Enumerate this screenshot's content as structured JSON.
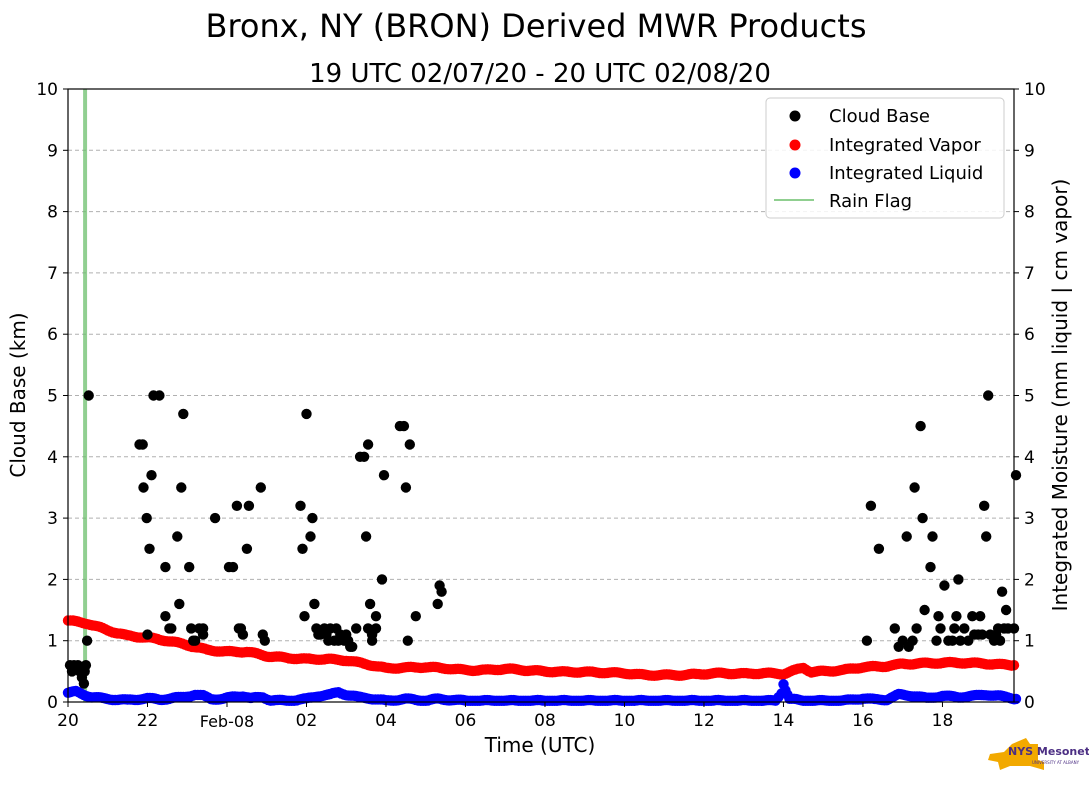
{
  "chart_data": {
    "type": "scatter",
    "title": "Bronx, NY (BRON) Derived MWR Products",
    "subtitle": "19 UTC 02/07/20 - 20 UTC 02/08/20",
    "xlabel": "Time (UTC)",
    "ylabel_left": "Cloud Base (km)",
    "ylabel_right": "Integrated Moisture (mm liquid | cm vapor)",
    "x_units": "hours since 20 UTC 02/07/20",
    "xlim": [
      0,
      23.8
    ],
    "ylim": [
      0,
      10
    ],
    "grid": true,
    "legend_position": "top-right",
    "x_ticks": [
      {
        "x": 0,
        "label": "20"
      },
      {
        "x": 2,
        "label": "22"
      },
      {
        "x": 4,
        "label": "Feb-08"
      },
      {
        "x": 6,
        "label": "02"
      },
      {
        "x": 8,
        "label": "04"
      },
      {
        "x": 10,
        "label": "06"
      },
      {
        "x": 12,
        "label": "08"
      },
      {
        "x": 14,
        "label": "10"
      },
      {
        "x": 16,
        "label": "12"
      },
      {
        "x": 18,
        "label": "14"
      },
      {
        "x": 20,
        "label": "16"
      },
      {
        "x": 22,
        "label": "18"
      }
    ],
    "y_ticks": [
      "0",
      "1",
      "2",
      "3",
      "4",
      "5",
      "6",
      "7",
      "8",
      "9",
      "10"
    ],
    "series": [
      {
        "name": "Cloud Base",
        "color": "#000000",
        "points": [
          [
            0.05,
            0.6
          ],
          [
            0.1,
            0.5
          ],
          [
            0.15,
            0.6
          ],
          [
            0.2,
            0.55
          ],
          [
            0.25,
            0.6
          ],
          [
            0.3,
            0.5
          ],
          [
            0.35,
            0.4
          ],
          [
            0.4,
            0.3
          ],
          [
            0.42,
            0.5
          ],
          [
            0.45,
            0.6
          ],
          [
            0.48,
            1.0
          ],
          [
            0.52,
            5.0
          ],
          [
            1.8,
            4.2
          ],
          [
            1.88,
            4.2
          ],
          [
            1.9,
            3.5
          ],
          [
            1.98,
            3.0
          ],
          [
            2.0,
            1.1
          ],
          [
            2.05,
            2.5
          ],
          [
            2.1,
            3.7
          ],
          [
            2.15,
            5.0
          ],
          [
            2.3,
            5.0
          ],
          [
            2.45,
            2.2
          ],
          [
            2.45,
            1.4
          ],
          [
            2.55,
            1.2
          ],
          [
            2.6,
            1.2
          ],
          [
            2.75,
            2.7
          ],
          [
            2.8,
            1.6
          ],
          [
            2.85,
            3.5
          ],
          [
            2.9,
            4.7
          ],
          [
            3.05,
            2.2
          ],
          [
            3.1,
            1.2
          ],
          [
            3.15,
            1.0
          ],
          [
            3.2,
            1.0
          ],
          [
            3.3,
            1.2
          ],
          [
            3.4,
            1.1
          ],
          [
            3.4,
            1.2
          ],
          [
            3.7,
            3.0
          ],
          [
            4.05,
            2.2
          ],
          [
            4.15,
            2.2
          ],
          [
            4.25,
            3.2
          ],
          [
            4.3,
            1.2
          ],
          [
            4.35,
            1.2
          ],
          [
            4.4,
            1.1
          ],
          [
            4.5,
            2.5
          ],
          [
            4.55,
            3.2
          ],
          [
            4.85,
            3.5
          ],
          [
            4.9,
            1.1
          ],
          [
            4.95,
            1.0
          ],
          [
            5.85,
            3.2
          ],
          [
            5.9,
            2.5
          ],
          [
            5.95,
            1.4
          ],
          [
            6.0,
            4.7
          ],
          [
            6.1,
            2.7
          ],
          [
            6.15,
            3.0
          ],
          [
            6.2,
            1.6
          ],
          [
            6.25,
            1.2
          ],
          [
            6.3,
            1.1
          ],
          [
            6.35,
            1.1
          ],
          [
            6.45,
            1.2
          ],
          [
            6.5,
            1.1
          ],
          [
            6.55,
            1.0
          ],
          [
            6.6,
            1.2
          ],
          [
            6.7,
            1.0
          ],
          [
            6.75,
            1.2
          ],
          [
            6.8,
            1.0
          ],
          [
            6.85,
            1.1
          ],
          [
            6.95,
            1.0
          ],
          [
            7.0,
            1.1
          ],
          [
            7.05,
            1.0
          ],
          [
            7.1,
            0.9
          ],
          [
            7.15,
            0.9
          ],
          [
            7.25,
            1.2
          ],
          [
            7.35,
            4.0
          ],
          [
            7.45,
            4.0
          ],
          [
            7.5,
            2.7
          ],
          [
            7.55,
            4.2
          ],
          [
            7.55,
            1.2
          ],
          [
            7.6,
            1.6
          ],
          [
            7.65,
            1.1
          ],
          [
            7.65,
            1.0
          ],
          [
            7.75,
            1.2
          ],
          [
            7.75,
            1.4
          ],
          [
            7.9,
            2.0
          ],
          [
            7.95,
            3.7
          ],
          [
            8.35,
            4.5
          ],
          [
            8.45,
            4.5
          ],
          [
            8.5,
            3.5
          ],
          [
            8.55,
            1.0
          ],
          [
            8.6,
            4.2
          ],
          [
            8.75,
            1.4
          ],
          [
            9.3,
            1.6
          ],
          [
            9.35,
            1.9
          ],
          [
            9.4,
            1.8
          ],
          [
            20.1,
            1.0
          ],
          [
            20.2,
            3.2
          ],
          [
            20.4,
            2.5
          ],
          [
            20.8,
            1.2
          ],
          [
            20.9,
            0.9
          ],
          [
            21.0,
            1.0
          ],
          [
            21.1,
            2.7
          ],
          [
            21.15,
            0.9
          ],
          [
            21.25,
            1.0
          ],
          [
            21.3,
            3.5
          ],
          [
            21.35,
            1.2
          ],
          [
            21.45,
            4.5
          ],
          [
            21.5,
            3.0
          ],
          [
            21.55,
            1.5
          ],
          [
            21.7,
            2.2
          ],
          [
            21.75,
            2.7
          ],
          [
            21.85,
            1.0
          ],
          [
            21.9,
            1.4
          ],
          [
            21.95,
            1.2
          ],
          [
            22.05,
            1.9
          ],
          [
            22.15,
            1.0
          ],
          [
            22.25,
            1.0
          ],
          [
            22.3,
            1.2
          ],
          [
            22.35,
            1.4
          ],
          [
            22.4,
            2.0
          ],
          [
            22.45,
            1.0
          ],
          [
            22.55,
            1.2
          ],
          [
            22.65,
            1.0
          ],
          [
            22.75,
            1.4
          ],
          [
            22.8,
            1.1
          ],
          [
            22.9,
            1.1
          ],
          [
            22.95,
            1.4
          ],
          [
            23.0,
            1.1
          ],
          [
            23.05,
            3.2
          ],
          [
            23.1,
            2.7
          ],
          [
            23.15,
            5.0
          ],
          [
            23.2,
            1.1
          ],
          [
            23.3,
            1.0
          ],
          [
            23.35,
            1.1
          ],
          [
            23.4,
            1.2
          ],
          [
            23.45,
            1.0
          ],
          [
            23.5,
            1.8
          ],
          [
            23.55,
            1.2
          ],
          [
            23.6,
            1.5
          ],
          [
            23.65,
            1.2
          ],
          [
            23.8,
            1.2
          ],
          [
            23.85,
            3.7
          ]
        ]
      },
      {
        "name": "Integrated Vapor",
        "color": "#ff0000",
        "points": [
          [
            0,
            1.33
          ],
          [
            0.5,
            1.28
          ],
          [
            1,
            1.17
          ],
          [
            1.5,
            1.08
          ],
          [
            2,
            1.05
          ],
          [
            2.5,
            1.0
          ],
          [
            3,
            0.93
          ],
          [
            3.5,
            0.85
          ],
          [
            4,
            0.82
          ],
          [
            4.5,
            0.82
          ],
          [
            5,
            0.75
          ],
          [
            5.5,
            0.72
          ],
          [
            6,
            0.7
          ],
          [
            6.5,
            0.7
          ],
          [
            7,
            0.68
          ],
          [
            7.5,
            0.62
          ],
          [
            8,
            0.55
          ],
          [
            8.5,
            0.56
          ],
          [
            9,
            0.57
          ],
          [
            9.5,
            0.55
          ],
          [
            10,
            0.52
          ],
          [
            10.5,
            0.52
          ],
          [
            11,
            0.54
          ],
          [
            11.5,
            0.52
          ],
          [
            12,
            0.5
          ],
          [
            12.5,
            0.49
          ],
          [
            13,
            0.49
          ],
          [
            13.5,
            0.48
          ],
          [
            14,
            0.47
          ],
          [
            14.5,
            0.44
          ],
          [
            15,
            0.44
          ],
          [
            15.5,
            0.44
          ],
          [
            16,
            0.46
          ],
          [
            16.5,
            0.47
          ],
          [
            17,
            0.46
          ],
          [
            17.5,
            0.47
          ],
          [
            18,
            0.46
          ],
          [
            18.3,
            0.52
          ],
          [
            18.5,
            0.56
          ],
          [
            18.7,
            0.49
          ],
          [
            19,
            0.5
          ],
          [
            19.5,
            0.52
          ],
          [
            20,
            0.57
          ],
          [
            20.5,
            0.58
          ],
          [
            21,
            0.62
          ],
          [
            21.5,
            0.63
          ],
          [
            22,
            0.64
          ],
          [
            22.5,
            0.64
          ],
          [
            23,
            0.63
          ],
          [
            23.5,
            0.61
          ],
          [
            23.8,
            0.6
          ]
        ]
      },
      {
        "name": "Integrated Liquid",
        "color": "#0000ff",
        "points": [
          [
            0,
            0.15
          ],
          [
            0.2,
            0.17
          ],
          [
            0.4,
            0.12
          ],
          [
            0.6,
            0.08
          ],
          [
            1,
            0.05
          ],
          [
            1.5,
            0.03
          ],
          [
            2,
            0.06
          ],
          [
            2.3,
            0.04
          ],
          [
            2.6,
            0.06
          ],
          [
            2.9,
            0.08
          ],
          [
            3.2,
            0.12
          ],
          [
            3.4,
            0.1
          ],
          [
            3.6,
            0.05
          ],
          [
            3.9,
            0.05
          ],
          [
            4.2,
            0.09
          ],
          [
            4.4,
            0.1
          ],
          [
            4.6,
            0.06
          ],
          [
            4.9,
            0.08
          ],
          [
            5.1,
            0.03
          ],
          [
            5.5,
            0.02
          ],
          [
            6,
            0.05
          ],
          [
            6.3,
            0.1
          ],
          [
            6.6,
            0.12
          ],
          [
            6.8,
            0.16
          ],
          [
            7,
            0.12
          ],
          [
            7.3,
            0.08
          ],
          [
            7.6,
            0.06
          ],
          [
            7.8,
            0.04
          ],
          [
            8,
            0.02
          ],
          [
            8.5,
            0.05
          ],
          [
            9,
            0.02
          ],
          [
            9.3,
            0.05
          ],
          [
            10,
            0.02
          ],
          [
            12,
            0.02
          ],
          [
            14,
            0.02
          ],
          [
            16,
            0.02
          ],
          [
            17.8,
            0.02
          ],
          [
            17.95,
            0.15
          ],
          [
            18.0,
            0.3
          ],
          [
            18.05,
            0.2
          ],
          [
            18.15,
            0.05
          ],
          [
            18.5,
            0.02
          ],
          [
            19.5,
            0.02
          ],
          [
            20,
            0.06
          ],
          [
            20.3,
            0.04
          ],
          [
            20.6,
            0.04
          ],
          [
            20.9,
            0.12
          ],
          [
            21.3,
            0.1
          ],
          [
            21.6,
            0.06
          ],
          [
            22,
            0.1
          ],
          [
            22.4,
            0.08
          ],
          [
            22.8,
            0.1
          ],
          [
            23.1,
            0.12
          ],
          [
            23.4,
            0.1
          ],
          [
            23.7,
            0.07
          ],
          [
            23.85,
            0.05
          ]
        ]
      }
    ],
    "rain_flag": {
      "name": "Rain Flag",
      "color": "#6cbf6c",
      "x": [
        0.38,
        0.48
      ]
    },
    "logo_text": "NYS Mesonet",
    "logo_subtext": "UNIVERSITY AT ALBANY"
  }
}
